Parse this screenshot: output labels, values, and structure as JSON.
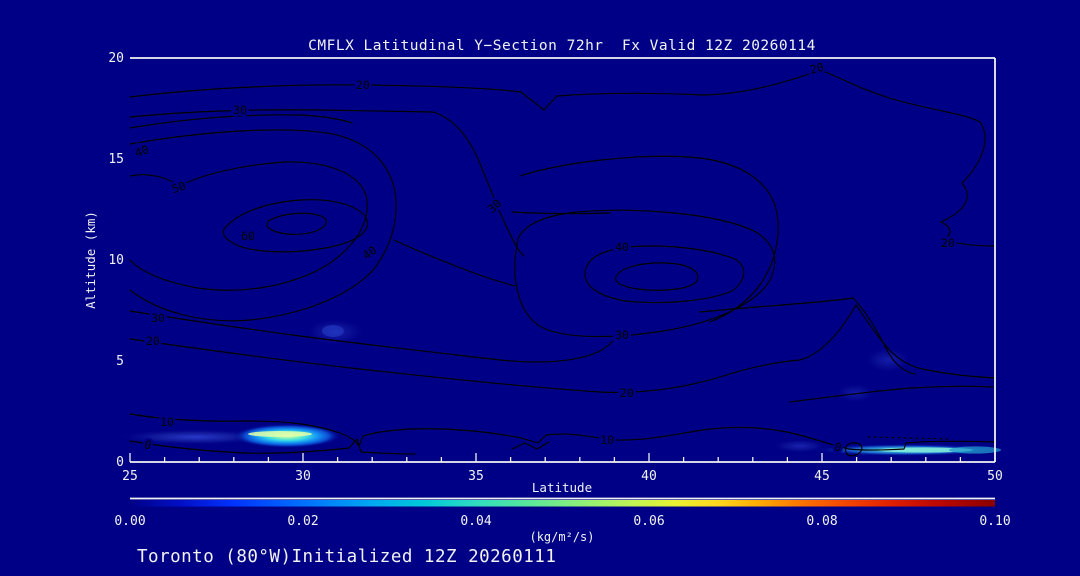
{
  "title": "CMFLX Latitudinal Y−Section 72hr  Fx Valid 12Z 20260114",
  "footer": "Toronto (80°W)Initialized 12Z 20260111",
  "colors": {
    "background": "#000087",
    "contour_line": "#000000",
    "axis_text": "#f2f2f2",
    "colorbar_start": "#000087",
    "colorbar_end": "#8a0000"
  },
  "chart_data": {
    "type": "contour",
    "title": "CMFLX Latitudinal Y−Section 72hr  Fx Valid 12Z 20260114",
    "subtitle": "Toronto (80°W)Initialized 12Z 20260111",
    "xlabel": "Latitude",
    "ylabel": "Altitude (km)",
    "xlim": [
      25,
      50
    ],
    "ylim": [
      0,
      20
    ],
    "x_ticks": [
      25,
      30,
      35,
      40,
      45,
      50
    ],
    "x_minor_tick_step": 1,
    "y_ticks": [
      0,
      5,
      10,
      15,
      20
    ],
    "grid": false,
    "contour_interval": 10,
    "contour_levels": [
      0,
      10,
      20,
      30,
      40,
      50,
      60
    ],
    "contour_labels": [
      {
        "v": "20",
        "lat": 31.73,
        "alt": 18.66
      },
      {
        "v": "30",
        "lat": 28.18,
        "alt": 17.43
      },
      {
        "v": "40",
        "lat": 25.38,
        "alt": 15.4,
        "rot": -20
      },
      {
        "v": "50",
        "lat": 26.45,
        "alt": 13.61,
        "rot": -20
      },
      {
        "v": "60",
        "lat": 28.41,
        "alt": 11.19
      },
      {
        "v": "40",
        "lat": 31.99,
        "alt": 10.4,
        "rot": -35
      },
      {
        "v": "30",
        "lat": 35.61,
        "alt": 12.72,
        "rot": -42
      },
      {
        "v": "20",
        "lat": 44.88,
        "alt": 19.5,
        "rot": -15
      },
      {
        "v": "20",
        "lat": 48.64,
        "alt": 10.84
      },
      {
        "v": "40",
        "lat": 39.22,
        "alt": 10.64
      },
      {
        "v": "30",
        "lat": 39.22,
        "alt": 6.29
      },
      {
        "v": "30",
        "lat": 25.81,
        "alt": 7.13
      },
      {
        "v": "20",
        "lat": 25.66,
        "alt": 5.99
      },
      {
        "v": "20",
        "lat": 39.36,
        "alt": 3.42
      },
      {
        "v": "10",
        "lat": 26.07,
        "alt": 1.98
      },
      {
        "v": "10",
        "lat": 38.79,
        "alt": 1.09
      },
      {
        "v": "0",
        "lat": 25.52,
        "alt": 0.84,
        "italic": true
      },
      {
        "v": "0",
        "lat": 45.46,
        "alt": 0.74,
        "italic": true
      }
    ],
    "maxima": [
      {
        "lat": 28.4,
        "alt_km": 11.2,
        "peak_contour": 60
      },
      {
        "lat": 39.2,
        "alt_km": 10.6,
        "peak_contour": 40
      }
    ],
    "shaded_regions": [
      {
        "lat_range": [
          28.0,
          31.0
        ],
        "alt_km": 1.2,
        "peak_value_kg_m2_s": 0.045,
        "desc": "bright cyan-green plume"
      },
      {
        "lat_range": [
          45.8,
          50.0
        ],
        "alt_km": 0.55,
        "peak_value_kg_m2_s": 0.035,
        "desc": "thin cyan streak"
      },
      {
        "lat": 30.9,
        "alt_km": 6.4,
        "peak_value_kg_m2_s": 0.012,
        "desc": "faint blue patch"
      },
      {
        "lat": 46.9,
        "alt_km": 5.0,
        "peak_value_kg_m2_s": 0.012,
        "desc": "faint blue patch"
      },
      {
        "lat": 45.9,
        "alt_km": 3.4,
        "peak_value_kg_m2_s": 0.01,
        "desc": "faint blue patch"
      }
    ],
    "colorbar": {
      "min": 0.0,
      "max": 0.1,
      "tick_labels": [
        "0.00",
        "0.02",
        "0.04",
        "0.06",
        "0.08",
        "0.10"
      ],
      "units_label": "(kg/m²/s)",
      "position": "bottom"
    }
  }
}
